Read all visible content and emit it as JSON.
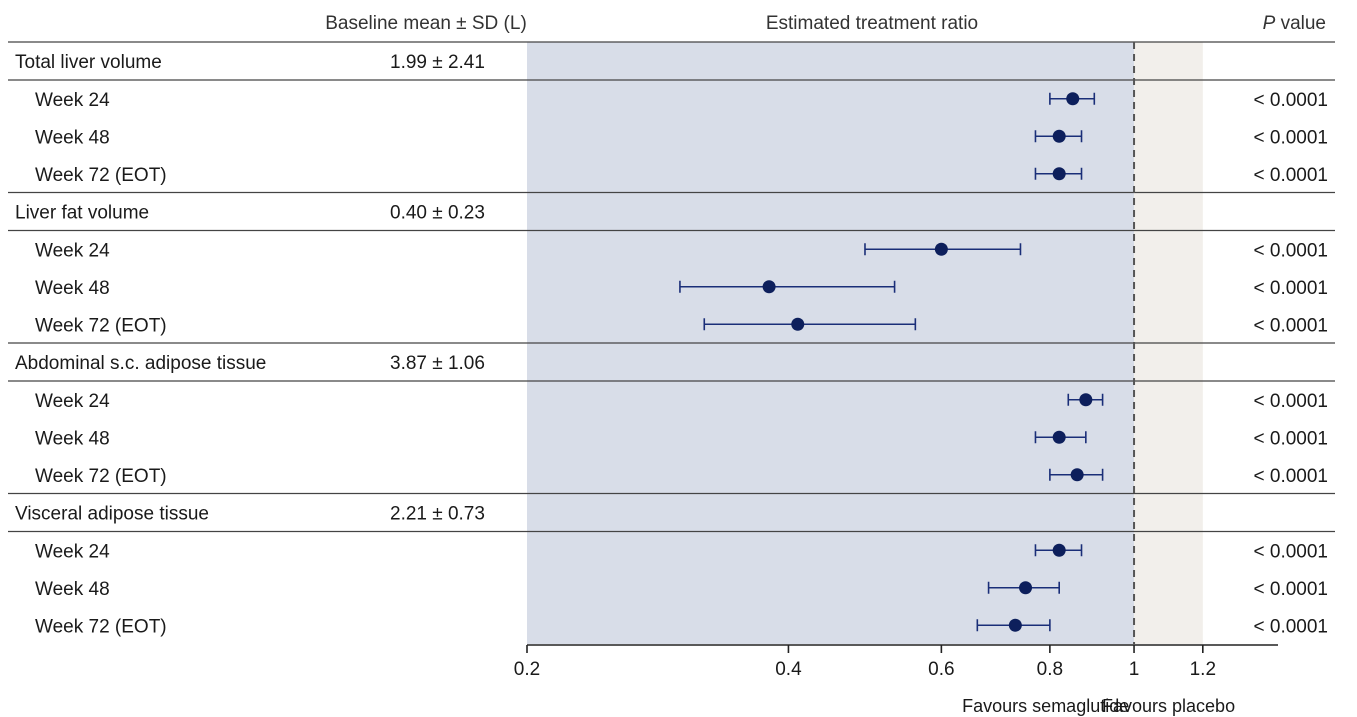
{
  "chart_data": {
    "type": "forest",
    "headers": {
      "baseline": "Baseline mean ± SD (L)",
      "ratio": "Estimated treatment ratio",
      "p_italic": "P",
      "p_rest": " value"
    },
    "axis": {
      "scale": "log",
      "range": [
        0.2,
        1.3
      ],
      "ticks": [
        0.2,
        0.4,
        0.6,
        0.8,
        1,
        1.2
      ],
      "tick_labels": [
        "0.2",
        "0.4",
        "0.6",
        "0.8",
        "1",
        "1.2"
      ],
      "reference_line": 1
    },
    "favours": {
      "left": "Favours semaglutide",
      "right": "Favours placebo"
    },
    "shading": {
      "left_color": "#d8dde8",
      "right_color": "#f2efeb",
      "right_limit": 1.2
    },
    "colors": {
      "marker": "#0d1f5c",
      "line": "#1a2e78",
      "rule": "#444444",
      "ref": "#555555"
    },
    "groups": [
      {
        "label": "Total liver volume",
        "baseline": "1.99 ± 2.41",
        "rows": [
          {
            "label": "Week 24",
            "est": 0.85,
            "lo": 0.8,
            "hi": 0.9,
            "p": "< 0.0001"
          },
          {
            "label": "Week 48",
            "est": 0.82,
            "lo": 0.77,
            "hi": 0.87,
            "p": "< 0.0001"
          },
          {
            "label": "Week 72 (EOT)",
            "est": 0.82,
            "lo": 0.77,
            "hi": 0.87,
            "p": "< 0.0001"
          }
        ]
      },
      {
        "label": "Liver fat volume",
        "baseline": "0.40 ± 0.23",
        "rows": [
          {
            "label": "Week 24",
            "est": 0.6,
            "lo": 0.49,
            "hi": 0.74,
            "p": "< 0.0001"
          },
          {
            "label": "Week 48",
            "est": 0.38,
            "lo": 0.3,
            "hi": 0.53,
            "p": "< 0.0001"
          },
          {
            "label": "Week 72 (EOT)",
            "est": 0.41,
            "lo": 0.32,
            "hi": 0.56,
            "p": "< 0.0001"
          }
        ]
      },
      {
        "label": "Abdominal s.c. adipose tissue",
        "baseline": "3.87 ± 1.06",
        "rows": [
          {
            "label": "Week 24",
            "est": 0.88,
            "lo": 0.84,
            "hi": 0.92,
            "p": "< 0.0001"
          },
          {
            "label": "Week 48",
            "est": 0.82,
            "lo": 0.77,
            "hi": 0.88,
            "p": "< 0.0001"
          },
          {
            "label": "Week 72 (EOT)",
            "est": 0.86,
            "lo": 0.8,
            "hi": 0.92,
            "p": "< 0.0001"
          }
        ]
      },
      {
        "label": "Visceral adipose tissue",
        "baseline": "2.21 ± 0.73",
        "rows": [
          {
            "label": "Week 24",
            "est": 0.82,
            "lo": 0.77,
            "hi": 0.87,
            "p": "< 0.0001"
          },
          {
            "label": "Week 48",
            "est": 0.75,
            "lo": 0.68,
            "hi": 0.82,
            "p": "< 0.0001"
          },
          {
            "label": "Week 72 (EOT)",
            "est": 0.73,
            "lo": 0.66,
            "hi": 0.8,
            "p": "< 0.0001"
          }
        ]
      }
    ]
  }
}
